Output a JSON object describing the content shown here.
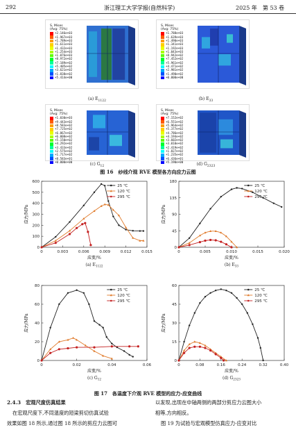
{
  "header": {
    "page_no": "292",
    "journal": "浙江理工大学学报(自然科学)",
    "issue": "2025 年　第 53 卷"
  },
  "fig16": {
    "panels": [
      {
        "title": "S, Mises",
        "avg": "(Avg: 75%)",
        "values": [
          "+2.146e+03",
          "+1.967e+03",
          "+1.789e+03",
          "+1.611e+03",
          "+1.432e+03",
          "+1.254e+03",
          "+1.076e+03",
          "+8.972e+02",
          "+7.189e+02",
          "+5.405e+02",
          "+3.621e+02",
          "+1.838e+02",
          "+5.414e+00"
        ],
        "label_main": "(a) E",
        "label_sub": "1122"
      },
      {
        "title": "S, Mises",
        "avg": "(Avg: 75%)",
        "values": [
          "+1.788e+03",
          "+1.639e+03",
          "+1.490e+03",
          "+1.341e+03",
          "+1.192e+03",
          "+1.043e+03",
          "+8.942e+02",
          "+7.452e+02",
          "+5.961e+02",
          "+4.471e+02",
          "+2.981e+02",
          "+1.490e+02",
          "+0.000e+00"
        ],
        "label_main": "(b) E",
        "label_sub": "33"
      },
      {
        "title": "S, Mises",
        "avg": "(Avg: 75%)",
        "values": [
          "+1.030e+03",
          "+9.443e+02",
          "+8.583e+02",
          "+7.725e+02",
          "+6.867e+02",
          "+6.008e+02",
          "+5.150e+02",
          "+4.292e+02",
          "+3.433e+02",
          "+2.575e+02",
          "+1.717e+02",
          "+8.583e+01",
          "+0.000e+00"
        ],
        "label_main": "(c) G",
        "label_sub": "12"
      },
      {
        "title": "S, Mises",
        "avg": "(Avg: 75%)",
        "values": [
          "+7.152e+02",
          "+6.551e+02",
          "+5.964e+02",
          "+5.377e+02",
          "+4.786e+02",
          "+4.194e+02",
          "+3.602e+02",
          "+3.010e+02",
          "+2.419e+02",
          "+1.827e+02",
          "+1.235e+02",
          "+6.436e+01",
          "+5.190e+00"
        ],
        "label_main": "(d) G",
        "label_sub": "2323"
      }
    ],
    "caption": "图 16　纱线介观 RVE 模型各方向应力云图"
  },
  "fig17": {
    "caption": "图 17　各温度下介观 RVE 模型的应力-应变曲线",
    "ylabel": "应力/MPa",
    "xlabel": "应变/%",
    "series_names": [
      "25 ℃",
      "120 ℃",
      "295 ℃"
    ],
    "panel_labels": [
      {
        "main": "(a) E",
        "sub": "1122"
      },
      {
        "main": "(b) E",
        "sub": "33"
      },
      {
        "main": "(c) G",
        "sub": "12"
      },
      {
        "main": "(d) G",
        "sub": "2323"
      }
    ]
  },
  "chart_data": [
    {
      "type": "line",
      "xlabel": "应变/%",
      "ylabel": "应力/MPa",
      "xlim": [
        0,
        0.015
      ],
      "ylim": [
        0,
        600
      ],
      "xticks": [
        "0",
        "0.003",
        "0.006",
        "0.009",
        "0.012",
        "0.015"
      ],
      "yticks": [
        "0",
        "100",
        "200",
        "300",
        "400",
        "500",
        "600"
      ],
      "series": [
        {
          "name": "25 ℃",
          "color": "#222222",
          "x": [
            0,
            0.002,
            0.004,
            0.006,
            0.0075,
            0.0085,
            0.009,
            0.0095,
            0.0102,
            0.011,
            0.012,
            0.013,
            0.014,
            0.0145
          ],
          "y": [
            0,
            95,
            230,
            380,
            500,
            575,
            560,
            420,
            280,
            200,
            160,
            150,
            148,
            148
          ]
        },
        {
          "name": "120 ℃",
          "color": "#e07a2a",
          "x": [
            0,
            0.002,
            0.004,
            0.006,
            0.0075,
            0.0085,
            0.009,
            0.0095,
            0.0102,
            0.011,
            0.012,
            0.013,
            0.014,
            0.0145
          ],
          "y": [
            0,
            60,
            150,
            260,
            330,
            375,
            390,
            385,
            340,
            290,
            180,
            85,
            60,
            60
          ]
        },
        {
          "name": "295 ℃",
          "color": "#c42020",
          "x": [
            0,
            0.002,
            0.004,
            0.005,
            0.0058,
            0.0062,
            0.0066,
            0.007
          ],
          "y": [
            0,
            40,
            120,
            175,
            210,
            220,
            140,
            20
          ]
        }
      ]
    },
    {
      "type": "line",
      "xlabel": "应变/%",
      "ylabel": "应力/MPa",
      "xlim": [
        0,
        0.02
      ],
      "ylim": [
        0,
        180
      ],
      "xticks": [
        "0",
        "0.005",
        "0.010",
        "0.015",
        "0.020"
      ],
      "yticks": [
        "0",
        "45",
        "90",
        "135",
        "180"
      ],
      "series": [
        {
          "name": "25 ℃",
          "color": "#222222",
          "x": [
            0,
            0.002,
            0.004,
            0.006,
            0.008,
            0.01,
            0.011,
            0.012,
            0.014,
            0.016,
            0.018,
            0.0195
          ],
          "y": [
            0,
            25,
            65,
            105,
            138,
            158,
            162,
            160,
            150,
            135,
            120,
            110
          ]
        },
        {
          "name": "120 ℃",
          "color": "#e07a2a",
          "x": [
            0,
            0.002,
            0.004,
            0.005,
            0.006,
            0.007,
            0.008,
            0.009,
            0.01,
            0.011
          ],
          "y": [
            0,
            12,
            32,
            40,
            44,
            44,
            40,
            30,
            15,
            0
          ]
        },
        {
          "name": "295 ℃",
          "color": "#c42020",
          "x": [
            0,
            0.002,
            0.004,
            0.005,
            0.006,
            0.007,
            0.008,
            0.009,
            0.01
          ],
          "y": [
            0,
            6,
            14,
            18,
            20,
            19,
            15,
            8,
            0
          ]
        }
      ]
    },
    {
      "type": "line",
      "xlabel": "应变/%",
      "ylabel": "应力/MPa",
      "xlim": [
        0,
        0.06
      ],
      "ylim": [
        0,
        80
      ],
      "xticks": [
        "0",
        "0.02",
        "0.04",
        "0.06"
      ],
      "yticks": [
        "0",
        "20",
        "40",
        "60",
        "80"
      ],
      "series": [
        {
          "name": "25 ℃",
          "color": "#222222",
          "x": [
            0,
            0.005,
            0.01,
            0.015,
            0.02,
            0.024,
            0.027,
            0.03,
            0.033,
            0.035,
            0.037,
            0.04,
            0.043,
            0.047,
            0.05,
            0.052
          ],
          "y": [
            0,
            35,
            60,
            72,
            75,
            72,
            60,
            42,
            38,
            35,
            25,
            18,
            14,
            10,
            6,
            4
          ]
        },
        {
          "name": "120 ℃",
          "color": "#e07a2a",
          "x": [
            0,
            0.005,
            0.01,
            0.015,
            0.018,
            0.02,
            0.025,
            0.03,
            0.035,
            0.04
          ],
          "y": [
            0,
            12,
            20,
            22,
            24,
            22,
            16,
            10,
            5,
            2
          ]
        },
        {
          "name": "295 ℃",
          "color": "#c42020",
          "x": [
            0,
            0.005,
            0.01,
            0.015,
            0.02,
            0.03,
            0.04,
            0.05,
            0.055
          ],
          "y": [
            0,
            8,
            12,
            13,
            14,
            14,
            15,
            15,
            15
          ]
        }
      ]
    },
    {
      "type": "line",
      "xlabel": "应变/%",
      "ylabel": "应力/MPa",
      "xlim": [
        0,
        0.4
      ],
      "ylim": [
        0,
        60
      ],
      "xticks": [
        "0",
        "0.08",
        "0.16",
        "0.24",
        "0.32",
        "0.40"
      ],
      "yticks": [
        "0",
        "15",
        "30",
        "45",
        "60"
      ],
      "series": [
        {
          "name": "25 ℃",
          "color": "#222222",
          "x": [
            0,
            0.02,
            0.04,
            0.06,
            0.08,
            0.1,
            0.12,
            0.14,
            0.16,
            0.18,
            0.2,
            0.22,
            0.24,
            0.26,
            0.28,
            0.3,
            0.31,
            0.32
          ],
          "y": [
            0,
            15,
            28,
            38,
            46,
            51,
            54,
            56,
            57,
            56,
            54,
            50,
            45,
            38,
            29,
            18,
            10,
            0
          ]
        },
        {
          "name": "120 ℃",
          "color": "#e07a2a",
          "x": [
            0,
            0.02,
            0.04,
            0.06,
            0.08,
            0.1,
            0.12,
            0.14,
            0.16,
            0.18
          ],
          "y": [
            0,
            8,
            13,
            15,
            14,
            12,
            9,
            6,
            3,
            0
          ]
        },
        {
          "name": "295 ℃",
          "color": "#c42020",
          "x": [
            0,
            0.02,
            0.04,
            0.06,
            0.08,
            0.1,
            0.12,
            0.14,
            0.16,
            0.17
          ],
          "y": [
            0,
            6,
            10,
            11,
            11,
            10,
            8,
            5,
            2,
            0
          ]
        }
      ]
    }
  ],
  "text": {
    "section": "2.4.3　宏观尺度仿真结果",
    "left_lines": [
      "在宏观尺度下,不同温度的短梁剪切仿真试验",
      "效果如图 18 所示,通过图 18 所示的剪应力云图可"
    ],
    "right_lines": [
      "以发现,出现在中轴两侧的两部分剪应力云图大小",
      "相等,方向相反。",
      "图 19 为试验与宏观模型仿真应力-应变对比"
    ]
  },
  "colors": {
    "contour": [
      "#ff0000",
      "#ff5a00",
      "#ff9c00",
      "#ffd000",
      "#e9ff00",
      "#a8ff00",
      "#5cff00",
      "#00ff2a",
      "#00ff9a",
      "#00ffff",
      "#00a8ff",
      "#0050ff",
      "#0000ff"
    ]
  }
}
